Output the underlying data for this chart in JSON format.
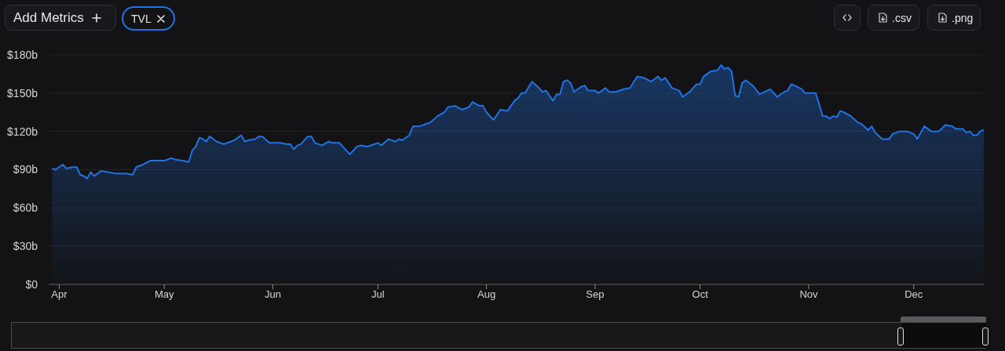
{
  "chart_data": {
    "type": "area",
    "color": "#2172e5",
    "annotations": [
      "Add Metrics",
      "TVL",
      ".csv",
      ".png"
    ],
    "x": [
      "--03-30",
      "--03-31",
      "--04-02",
      "--04-03",
      "--04-05",
      "--04-06",
      "--04-07",
      "--04-08",
      "--04-09",
      "--04-10",
      "--04-11",
      "--04-13",
      "--04-15",
      "--04-17",
      "--04-19",
      "--04-20",
      "--04-22",
      "--04-23",
      "--04-25",
      "--04-27",
      "--04-29",
      "--05-01",
      "--05-03",
      "--05-04",
      "--05-06",
      "--05-08",
      "--05-09",
      "--05-10",
      "--05-11",
      "--05-12",
      "--05-13",
      "--05-14",
      "--05-16",
      "--05-17",
      "--05-18",
      "--05-20",
      "--05-21",
      "--05-23",
      "--05-24",
      "--05-25",
      "--05-27",
      "--05-28",
      "--05-29",
      "--05-31",
      "--06-03",
      "--06-05",
      "--06-06",
      "--06-07",
      "--06-08",
      "--06-09",
      "--06-11",
      "--06-12",
      "--06-13",
      "--06-15",
      "--06-17",
      "--06-18",
      "--06-20",
      "--06-22",
      "--06-23",
      "--06-25",
      "--06-26",
      "--06-28",
      "--07-01",
      "--07-02",
      "--07-04",
      "--07-06",
      "--07-07",
      "--07-08",
      "--07-10",
      "--07-11",
      "--07-13",
      "--07-14",
      "--07-16",
      "--07-18",
      "--07-20",
      "--07-21",
      "--07-23",
      "--07-25",
      "--07-27",
      "--07-28",
      "--07-30",
      "--07-31",
      "--08-01",
      "--08-03",
      "--08-05",
      "--08-07",
      "--08-09",
      "--08-10",
      "--08-11",
      "--08-12",
      "--08-14",
      "--08-16",
      "--08-17",
      "--08-18",
      "--08-20",
      "--08-21",
      "--08-22",
      "--08-23",
      "--08-24",
      "--08-25",
      "--08-26",
      "--08-28",
      "--08-29",
      "--08-30",
      "--09-01",
      "--09-02",
      "--09-04",
      "--09-05",
      "--09-07",
      "--09-09",
      "--09-11",
      "--09-13",
      "--09-15",
      "--09-17",
      "--09-19",
      "--09-20",
      "--09-21",
      "--09-23",
      "--09-25",
      "--09-26",
      "--09-28",
      "--09-30",
      "--10-01",
      "--10-02",
      "--10-04",
      "--10-06",
      "--10-07",
      "--10-08",
      "--10-09",
      "--10-10",
      "--10-11",
      "--10-12",
      "--10-13",
      "--10-14",
      "--10-16",
      "--10-18",
      "--10-21",
      "--10-23",
      "--10-25",
      "--10-26",
      "--10-27",
      "--10-28",
      "--10-30",
      "--10-31",
      "--11-03",
      "--11-05",
      "--11-06",
      "--11-07",
      "--11-08",
      "--11-09",
      "--11-10",
      "--11-11",
      "--11-13",
      "--11-15",
      "--11-16",
      "--11-18",
      "--11-19",
      "--11-20",
      "--11-22",
      "--11-24",
      "--11-25",
      "--11-27",
      "--11-29",
      "--12-01",
      "--12-02",
      "--12-04",
      "--12-06",
      "--12-08",
      "--12-09",
      "--12-10",
      "--12-12",
      "--12-13",
      "--12-15",
      "--12-16",
      "--12-17",
      "--12-18",
      "--12-19",
      "--12-20",
      "--12-21"
    ],
    "values": [
      91,
      90,
      94,
      91,
      92,
      92,
      86,
      85,
      83,
      88,
      85,
      89,
      88,
      87,
      87,
      87,
      86,
      92,
      94,
      97,
      97,
      97,
      99,
      98,
      97,
      96,
      105,
      108,
      115,
      114,
      112,
      116,
      112,
      111,
      110,
      112,
      113,
      117,
      112,
      113,
      114,
      116,
      116,
      111,
      111,
      110,
      110,
      106,
      109,
      110,
      116,
      116,
      111,
      109,
      112,
      111,
      111,
      105,
      102,
      108,
      109,
      108,
      111,
      109,
      114,
      112,
      114,
      113,
      117,
      124,
      124,
      125,
      127,
      132,
      135,
      139,
      140,
      137,
      139,
      143,
      140,
      140,
      135,
      129,
      137,
      136,
      144,
      146,
      150,
      150,
      159,
      154,
      151,
      152,
      144,
      149,
      149,
      159,
      160,
      158,
      151,
      155,
      156,
      152,
      152,
      150,
      154,
      151,
      151,
      153,
      154,
      163,
      162,
      159,
      163,
      160,
      162,
      154,
      152,
      147,
      151,
      157,
      157,
      163,
      167,
      168,
      172,
      169,
      170,
      167,
      148,
      147,
      158,
      160,
      156,
      149,
      153,
      147,
      151,
      152,
      157,
      156,
      153,
      150,
      150,
      132,
      132,
      130,
      132,
      131,
      136,
      135,
      132,
      127,
      126,
      121,
      124,
      119,
      114,
      114,
      118,
      120,
      120,
      118,
      114,
      124,
      120,
      120,
      122,
      125,
      124,
      122,
      122,
      119,
      120,
      117,
      117,
      120,
      121
    ],
    "xlim": [
      "--03-29",
      "--12-21"
    ],
    "xticks": [
      {
        "value": "--04-01",
        "label": "Apr"
      },
      {
        "value": "--05-01",
        "label": "May"
      },
      {
        "value": "--06-01",
        "label": "Jun"
      },
      {
        "value": "--07-01",
        "label": "Jul"
      },
      {
        "value": "--08-01",
        "label": "Aug"
      },
      {
        "value": "--09-01",
        "label": "Sep"
      },
      {
        "value": "--10-01",
        "label": "Oct"
      },
      {
        "value": "--11-01",
        "label": "Nov"
      },
      {
        "value": "--12-01",
        "label": "Dec"
      }
    ],
    "ylim": [
      0,
      180
    ],
    "yticks": [
      {
        "value": 0,
        "label": "$0"
      },
      {
        "value": 30,
        "label": "$30b"
      },
      {
        "value": 60,
        "label": "$60b"
      },
      {
        "value": 90,
        "label": "$90b"
      },
      {
        "value": 120,
        "label": "$120b"
      },
      {
        "value": 150,
        "label": "$150b"
      },
      {
        "value": 180,
        "label": "$180b"
      }
    ],
    "grid": "y"
  }
}
